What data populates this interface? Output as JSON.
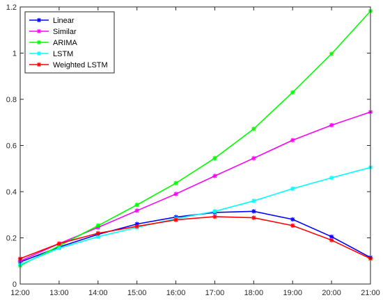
{
  "chart_data": {
    "type": "line",
    "title": "",
    "xlabel": "",
    "ylabel": "",
    "categories": [
      "12:00",
      "13:00",
      "14:00",
      "15:00",
      "16:00",
      "17:00",
      "18:00",
      "19:00",
      "20:00",
      "21:00"
    ],
    "ylim": [
      0,
      1.2
    ],
    "yticks": [
      "0",
      "0.2",
      "0.4",
      "0.6",
      "0.8",
      "1",
      "1.2"
    ],
    "grid": false,
    "legend_position": "top-left",
    "series": [
      {
        "name": "Linear",
        "color": "#0000ff",
        "marker": "asterisk",
        "values": [
          0.095,
          0.16,
          0.215,
          0.26,
          0.29,
          0.31,
          0.315,
          0.28,
          0.205,
          0.115
        ]
      },
      {
        "name": "Similar",
        "color": "#ff00ff",
        "marker": "asterisk",
        "values": [
          0.1,
          0.175,
          0.245,
          0.318,
          0.39,
          0.468,
          0.545,
          0.623,
          0.688,
          0.745
        ]
      },
      {
        "name": "ARIMA",
        "color": "#00ff00",
        "marker": "asterisk",
        "values": [
          0.08,
          0.165,
          0.253,
          0.343,
          0.437,
          0.545,
          0.672,
          0.83,
          0.997,
          1.182
        ]
      },
      {
        "name": "LSTM",
        "color": "#00ffff",
        "marker": "asterisk",
        "values": [
          0.085,
          0.155,
          0.205,
          0.245,
          0.283,
          0.315,
          0.36,
          0.413,
          0.46,
          0.505
        ]
      },
      {
        "name": "Weighted LSTM",
        "color": "#ff0000",
        "marker": "asterisk",
        "values": [
          0.11,
          0.175,
          0.22,
          0.25,
          0.278,
          0.292,
          0.287,
          0.253,
          0.19,
          0.11
        ]
      }
    ]
  }
}
